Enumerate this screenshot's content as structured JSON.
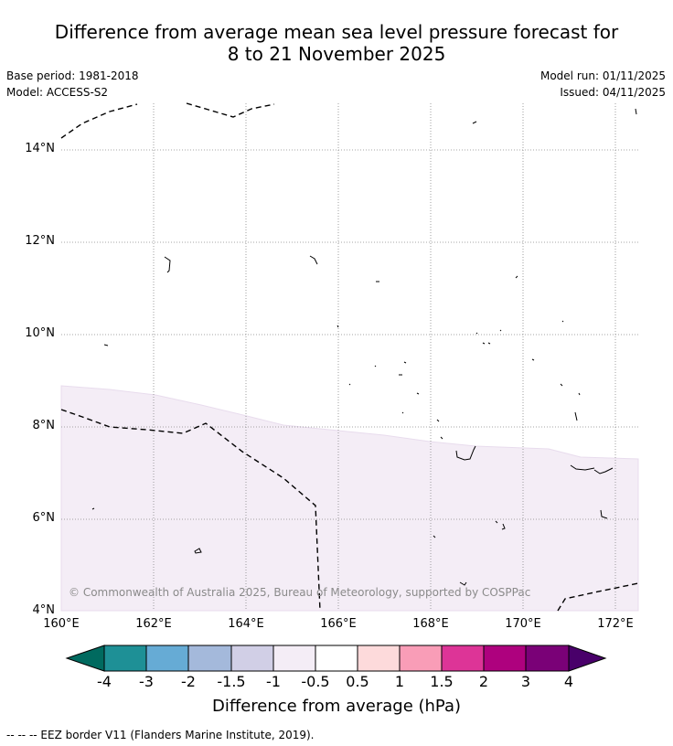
{
  "title": {
    "line1": "Difference from average mean sea level pressure forecast for",
    "line2": "8 to 21 November 2025"
  },
  "info": {
    "base_period": "Base period: 1981-2018",
    "model": "Model: ACCESS-S2",
    "model_run": "Model run: 01/11/2025",
    "issued": "Issued: 04/11/2025"
  },
  "axes": {
    "lat_labels": [
      "14°N",
      "12°N",
      "10°N",
      "8°N",
      "6°N",
      "4°N"
    ],
    "lon_labels": [
      "160°E",
      "162°E",
      "164°E",
      "166°E",
      "168°E",
      "170°E",
      "172°E"
    ]
  },
  "copyright": "© Commonwealth of Australia 2025, Bureau of Meteorology, supported by COSPPac",
  "colorbar": {
    "title": "Difference from average (hPa)",
    "ticks": [
      "-4",
      "-3",
      "-2",
      "-1.5",
      "-1",
      "-0.5",
      "0.5",
      "1",
      "1.5",
      "2",
      "3",
      "4"
    ],
    "colors": [
      "#006a5f",
      "#1e9096",
      "#66abd5",
      "#a4b9db",
      "#d1cfe6",
      "#f4edf6",
      "#ffffff",
      "#fddadb",
      "#f99db7",
      "#dd3497",
      "#ae017e",
      "#7a0177",
      "#49006a"
    ],
    "region_fill": "#f4edf6"
  },
  "footer": "--  --  -- EEZ border V11 (Flanders Marine Institute, 2019)."
}
